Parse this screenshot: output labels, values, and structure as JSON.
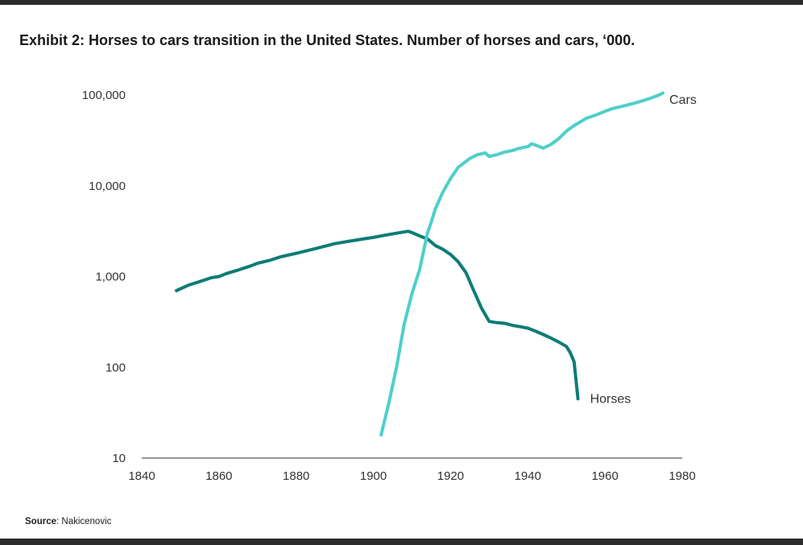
{
  "header": {
    "title": "Exhibit 2: Horses to cars transition in the United States. Number of horses and cars, ‘000."
  },
  "footer": {
    "source_label": "Source",
    "source_text": ": Nakicenovic"
  },
  "colors": {
    "horses": "#0e7c77",
    "cars": "#4ecfca",
    "axis": "#333333",
    "rule": "#2b2b2b"
  },
  "chart_data": {
    "type": "line",
    "title": "Exhibit 2: Horses to cars transition in the United States. Number of horses and cars, ‘000.",
    "xlabel": "",
    "ylabel": "",
    "y_scale": "log",
    "xlim": [
      1840,
      1980
    ],
    "ylim": [
      10,
      100000
    ],
    "x_ticks": [
      1840,
      1860,
      1880,
      1900,
      1920,
      1940,
      1960,
      1980
    ],
    "y_ticks": [
      10,
      100,
      1000,
      10000,
      100000
    ],
    "x_tick_labels": [
      "1840",
      "1860",
      "1880",
      "1900",
      "1920",
      "1940",
      "1960",
      "1980"
    ],
    "y_tick_labels": [
      "10",
      "100",
      "1,000",
      "10,000",
      "100,000"
    ],
    "grid": false,
    "legend": "direct labels at line ends",
    "series": [
      {
        "name": "Horses",
        "x": [
          1849,
          1852,
          1855,
          1858,
          1860,
          1862,
          1865,
          1868,
          1870,
          1873,
          1876,
          1880,
          1885,
          1890,
          1895,
          1900,
          1903,
          1906,
          1909,
          1910,
          1912,
          1914,
          1916,
          1918,
          1920,
          1922,
          1924,
          1926,
          1928,
          1930,
          1932,
          1934,
          1936,
          1938,
          1940,
          1942,
          1944,
          1946,
          1948,
          1950,
          1951,
          1952,
          1953
        ],
        "values": [
          700,
          800,
          880,
          970,
          1000,
          1080,
          1180,
          1300,
          1400,
          1500,
          1650,
          1800,
          2030,
          2300,
          2500,
          2700,
          2850,
          3000,
          3150,
          3050,
          2800,
          2600,
          2200,
          2000,
          1750,
          1450,
          1100,
          700,
          450,
          320,
          310,
          305,
          290,
          280,
          270,
          250,
          230,
          210,
          190,
          170,
          145,
          115,
          45
        ]
      },
      {
        "name": "Cars",
        "x": [
          1902,
          1904,
          1906,
          1908,
          1910,
          1912,
          1914,
          1915,
          1916,
          1918,
          1920,
          1922,
          1925,
          1927,
          1929,
          1930,
          1932,
          1934,
          1936,
          1938,
          1940,
          1941,
          1942,
          1944,
          1946,
          1948,
          1950,
          1952,
          1955,
          1958,
          1960,
          1962,
          1965,
          1968,
          1970,
          1972,
          1974,
          1975
        ],
        "values": [
          18,
          40,
          100,
          300,
          650,
          1200,
          3000,
          4000,
          5500,
          8500,
          12000,
          16000,
          20000,
          22000,
          23000,
          21000,
          22000,
          23500,
          24500,
          26000,
          27000,
          29000,
          28000,
          26000,
          28500,
          33000,
          40000,
          46000,
          55000,
          61000,
          66000,
          71000,
          76000,
          82000,
          87000,
          93000,
          100000,
          105000
        ]
      }
    ]
  }
}
